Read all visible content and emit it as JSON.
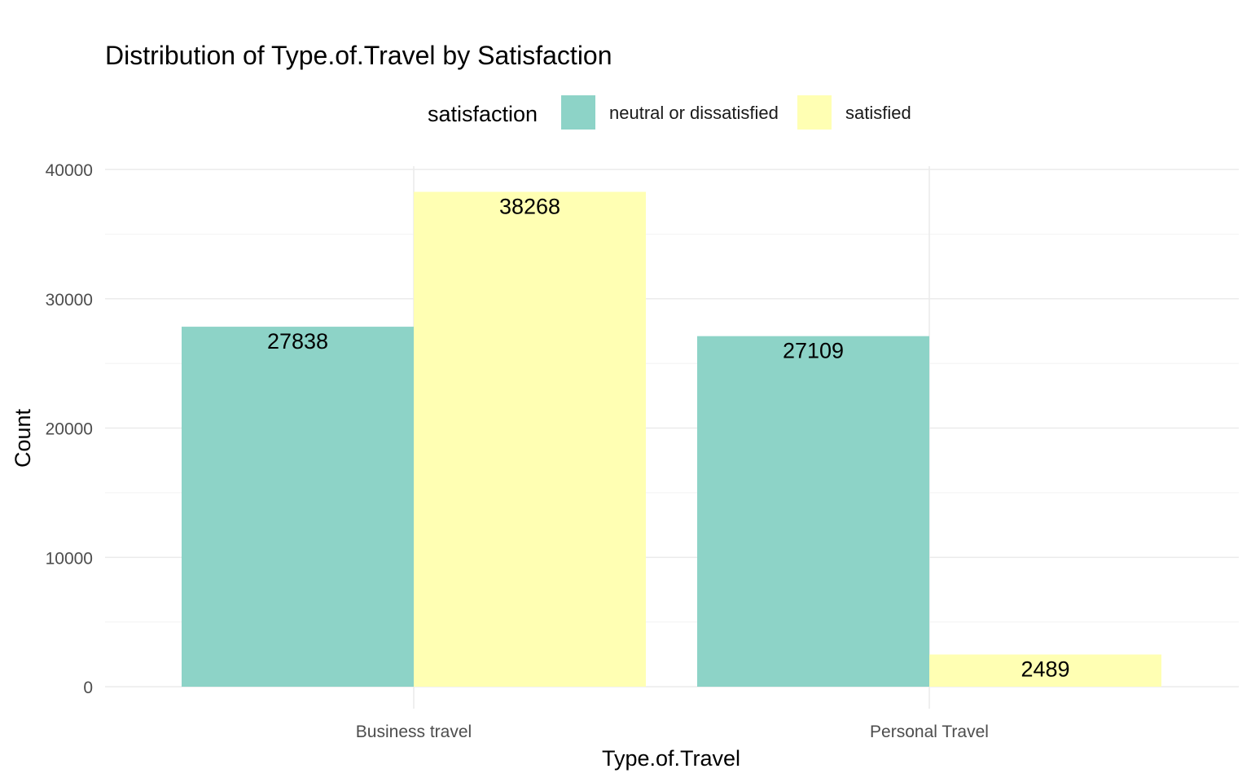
{
  "chart_data": {
    "type": "bar",
    "title": "Distribution of Type.of.Travel by Satisfaction",
    "xlabel": "Type.of.Travel",
    "ylabel": "Count",
    "categories": [
      "Business travel",
      "Personal Travel"
    ],
    "series": [
      {
        "name": "neutral or dissatisfied",
        "color": "#8dd3c7",
        "values": [
          27838,
          27109
        ]
      },
      {
        "name": "satisfied",
        "color": "#ffffb3",
        "values": [
          38268,
          2489
        ]
      }
    ],
    "ylim": [
      0,
      40000
    ],
    "yticks": [
      0,
      10000,
      20000,
      30000,
      40000
    ],
    "legend": {
      "title": "satisfaction",
      "position": "top"
    },
    "grid": true
  }
}
